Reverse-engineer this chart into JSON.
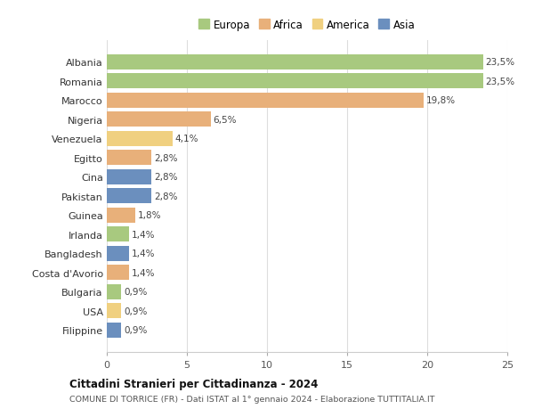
{
  "countries": [
    "Albania",
    "Romania",
    "Marocco",
    "Nigeria",
    "Venezuela",
    "Egitto",
    "Cina",
    "Pakistan",
    "Guinea",
    "Irlanda",
    "Bangladesh",
    "Costa d'Avorio",
    "Bulgaria",
    "USA",
    "Filippine"
  ],
  "values": [
    23.5,
    23.5,
    19.8,
    6.5,
    4.1,
    2.8,
    2.8,
    2.8,
    1.8,
    1.4,
    1.4,
    1.4,
    0.9,
    0.9,
    0.9
  ],
  "labels": [
    "23,5%",
    "23,5%",
    "19,8%",
    "6,5%",
    "4,1%",
    "2,8%",
    "2,8%",
    "2,8%",
    "1,8%",
    "1,4%",
    "1,4%",
    "1,4%",
    "0,9%",
    "0,9%",
    "0,9%"
  ],
  "continents": [
    "Europa",
    "Europa",
    "Africa",
    "Africa",
    "America",
    "Africa",
    "Asia",
    "Asia",
    "Africa",
    "Europa",
    "Asia",
    "Africa",
    "Europa",
    "America",
    "Asia"
  ],
  "continent_colors": {
    "Europa": "#a8c97f",
    "Africa": "#e8b07a",
    "America": "#f0d080",
    "Asia": "#6b8fbe"
  },
  "legend_order": [
    "Europa",
    "Africa",
    "America",
    "Asia"
  ],
  "title": "Cittadini Stranieri per Cittadinanza - 2024",
  "subtitle": "COMUNE DI TORRICE (FR) - Dati ISTAT al 1° gennaio 2024 - Elaborazione TUTTITALIA.IT",
  "xlim": [
    0,
    25
  ],
  "xticks": [
    0,
    5,
    10,
    15,
    20,
    25
  ],
  "background_color": "#ffffff",
  "grid_color": "#dddddd"
}
